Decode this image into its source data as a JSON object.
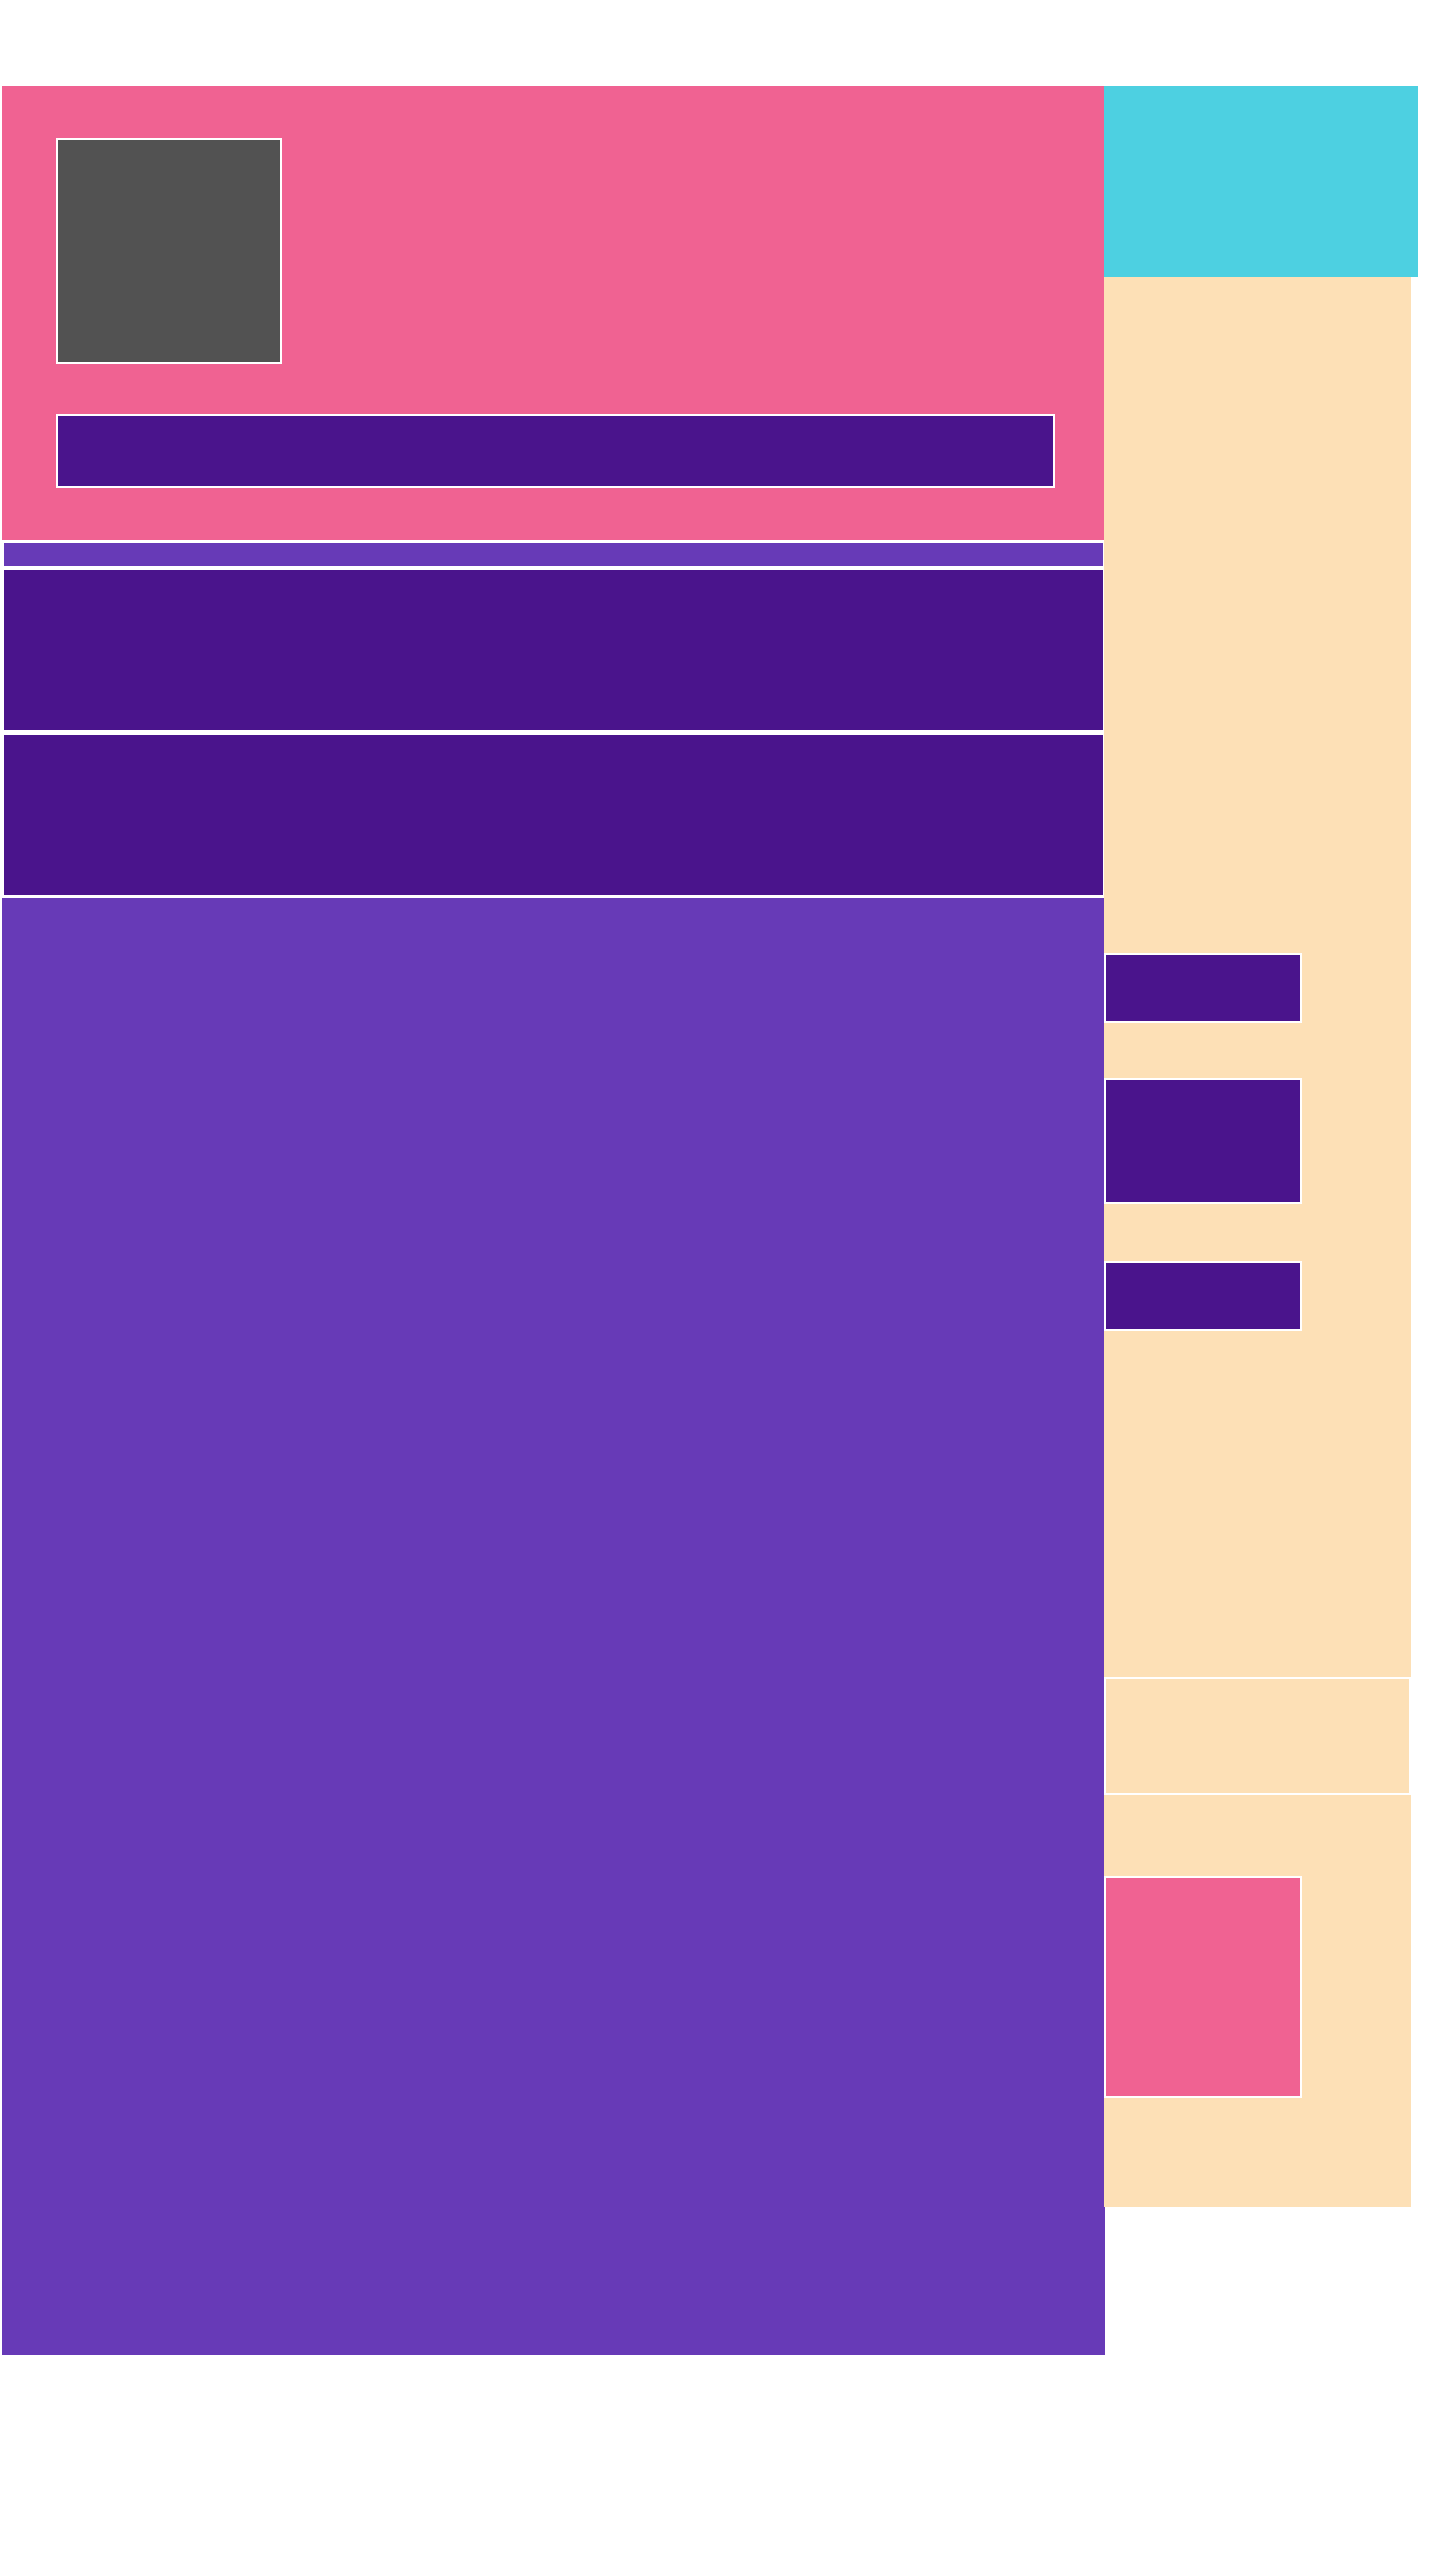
{
  "colors": {
    "page_background": "#ffffff",
    "hero_background": "#f06292",
    "avatar_placeholder": "#525252",
    "deep_purple": "#4a148c",
    "medium_purple": "#673ab7",
    "cyan_header": "#4dd0e1",
    "sidebar_background": "#fde0b6",
    "pink_card": "#f06292"
  },
  "hero": {
    "avatar": {
      "icon": "image-placeholder-icon"
    },
    "bar": {
      "text": ""
    }
  },
  "sidebar": {
    "items": [
      {
        "label": ""
      },
      {
        "label": ""
      },
      {
        "label": ""
      }
    ]
  }
}
